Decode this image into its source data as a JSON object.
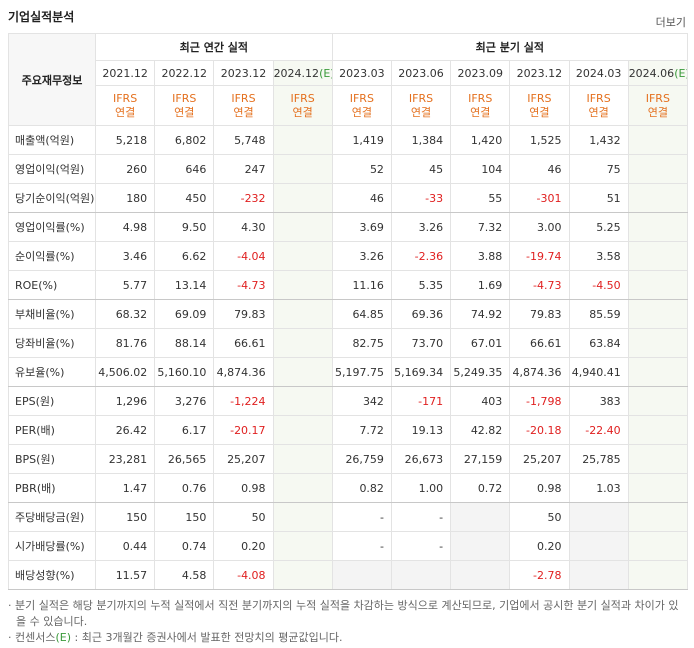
{
  "title": "기업실적분석",
  "more": "더보기",
  "header": {
    "row_label": "주요재무정보",
    "groups": [
      {
        "title": "최근 연간 실적",
        "periods": [
          {
            "date": "2021.12",
            "standard": "IFRS",
            "scope": "연결"
          },
          {
            "date": "2022.12",
            "standard": "IFRS",
            "scope": "연결"
          },
          {
            "date": "2023.12",
            "standard": "IFRS",
            "scope": "연결"
          },
          {
            "date": "2024.12",
            "mark": "(E)",
            "standard": "IFRS",
            "scope": "연결"
          }
        ]
      },
      {
        "title": "최근 분기 실적",
        "periods": [
          {
            "date": "2023.03",
            "standard": "IFRS",
            "scope": "연결"
          },
          {
            "date": "2023.06",
            "standard": "IFRS",
            "scope": "연결"
          },
          {
            "date": "2023.09",
            "standard": "IFRS",
            "scope": "연결"
          },
          {
            "date": "2023.12",
            "standard": "IFRS",
            "scope": "연결"
          },
          {
            "date": "2024.03",
            "standard": "IFRS",
            "scope": "연결"
          },
          {
            "date": "2024.06",
            "mark": "(E)",
            "standard": "IFRS",
            "scope": "연결"
          }
        ]
      }
    ]
  },
  "sections": [
    {
      "rows": [
        {
          "label": "매출액(억원)",
          "values": [
            "5,218",
            "6,802",
            "5,748",
            null,
            "1,419",
            "1,384",
            "1,420",
            "1,525",
            "1,432",
            null
          ]
        },
        {
          "label": "영업이익(억원)",
          "values": [
            "260",
            "646",
            "247",
            null,
            "52",
            "45",
            "104",
            "46",
            "75",
            null
          ]
        },
        {
          "label": "당기순이익(억원)",
          "values": [
            "180",
            "450",
            "-232",
            null,
            "46",
            "-33",
            "55",
            "-301",
            "51",
            null
          ]
        }
      ]
    },
    {
      "rows": [
        {
          "label": "영업이익률(%)",
          "values": [
            "4.98",
            "9.50",
            "4.30",
            null,
            "3.69",
            "3.26",
            "7.32",
            "3.00",
            "5.25",
            null
          ]
        },
        {
          "label": "순이익률(%)",
          "values": [
            "3.46",
            "6.62",
            "-4.04",
            null,
            "3.26",
            "-2.36",
            "3.88",
            "-19.74",
            "3.58",
            null
          ]
        },
        {
          "label": "ROE(%)",
          "values": [
            "5.77",
            "13.14",
            "-4.73",
            null,
            "11.16",
            "5.35",
            "1.69",
            "-4.73",
            "-4.50",
            null
          ]
        }
      ]
    },
    {
      "rows": [
        {
          "label": "부채비율(%)",
          "values": [
            "68.32",
            "69.09",
            "79.83",
            null,
            "64.85",
            "69.36",
            "74.92",
            "79.83",
            "85.59",
            null
          ]
        },
        {
          "label": "당좌비율(%)",
          "values": [
            "81.76",
            "88.14",
            "66.61",
            null,
            "82.75",
            "73.70",
            "67.01",
            "66.61",
            "63.84",
            null
          ]
        },
        {
          "label": "유보율(%)",
          "values": [
            "4,506.02",
            "5,160.10",
            "4,874.36",
            null,
            "5,197.75",
            "5,169.34",
            "5,249.35",
            "4,874.36",
            "4,940.41",
            null
          ]
        }
      ]
    },
    {
      "rows": [
        {
          "label": "EPS(원)",
          "values": [
            "1,296",
            "3,276",
            "-1,224",
            null,
            "342",
            "-171",
            "403",
            "-1,798",
            "383",
            null
          ]
        },
        {
          "label": "PER(배)",
          "values": [
            "26.42",
            "6.17",
            "-20.17",
            null,
            "7.72",
            "19.13",
            "42.82",
            "-20.18",
            "-22.40",
            null
          ]
        },
        {
          "label": "BPS(원)",
          "values": [
            "23,281",
            "26,565",
            "25,207",
            null,
            "26,759",
            "26,673",
            "27,159",
            "25,207",
            "25,785",
            null
          ]
        },
        {
          "label": "PBR(배)",
          "values": [
            "1.47",
            "0.76",
            "0.98",
            null,
            "0.82",
            "1.00",
            "0.72",
            "0.98",
            "1.03",
            null
          ]
        }
      ]
    },
    {
      "rows": [
        {
          "label": "주당배당금(원)",
          "values": [
            "150",
            "150",
            "50",
            null,
            "-",
            "-",
            null,
            "50",
            null,
            null
          ]
        },
        {
          "label": "시가배당률(%)",
          "values": [
            "0.44",
            "0.74",
            "0.20",
            null,
            "-",
            "-",
            null,
            "0.20",
            null,
            null
          ]
        },
        {
          "label": "배당성향(%)",
          "values": [
            "11.57",
            "4.58",
            "-4.08",
            null,
            null,
            null,
            null,
            "-2.78",
            null,
            null
          ]
        }
      ]
    }
  ],
  "notes": [
    {
      "text": "분기 실적은 해당 분기까지의 누적 실적에서 직전 분기까지의 누적 실적을 차감하는 방식으로 계산되므로, 기업에서 공시한 분기 실적과 차이가 있을 수 있습니다."
    },
    {
      "prefix": "컨센서스",
      "mark": "(E)",
      "text": " : 최근 3개월간 증권사에서 발표한 전망치의 평균값입니다."
    }
  ]
}
